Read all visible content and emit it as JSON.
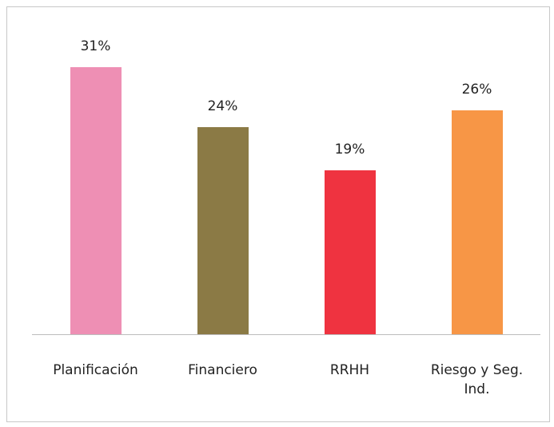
{
  "chart_data": {
    "type": "bar",
    "categories": [
      "Planificación",
      "Financiero",
      "RRHH",
      "Riesgo y Seg. Ind."
    ],
    "values": [
      31,
      24,
      19,
      26
    ],
    "value_labels": [
      "31%",
      "24%",
      "19%",
      "26%"
    ],
    "colors": [
      "#ee8fb4",
      "#8b7a45",
      "#ef3340",
      "#f79646"
    ],
    "grid": false
  }
}
